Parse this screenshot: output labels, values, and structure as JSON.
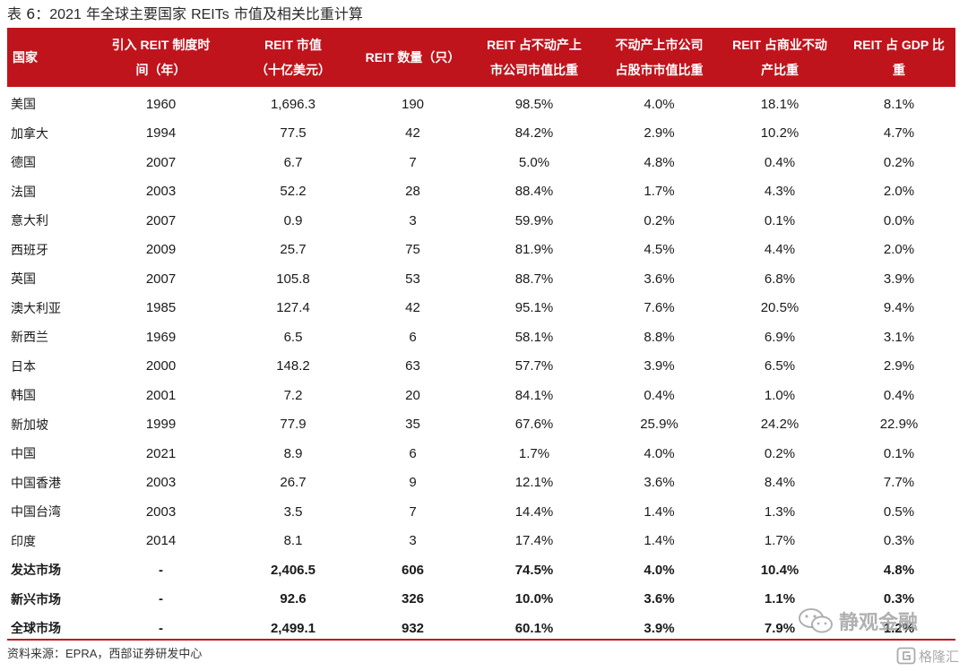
{
  "caption": {
    "prefix": "表 6：",
    "year": "2021",
    "mid": " 年全球主要国家 ",
    "reits": "REITs",
    "suffix": " 市值及相关比重计算"
  },
  "header": {
    "color": "#c0141c",
    "columns": [
      {
        "line1": "国家",
        "line2": ""
      },
      {
        "line1": "引入 REIT 制度时",
        "line2": "间（年）"
      },
      {
        "line1": "REIT 市值",
        "line2": "（十亿美元）"
      },
      {
        "line1": "REIT 数量（只）",
        "line2": ""
      },
      {
        "line1": "REIT 占不动产上",
        "line2": "市公司市值比重"
      },
      {
        "line1": "不动产上市公司",
        "line2": "占股市市值比重"
      },
      {
        "line1": "REIT 占商业不动",
        "line2": "产比重"
      },
      {
        "line1": "REIT 占 GDP 比",
        "line2": "重"
      }
    ]
  },
  "rows": [
    [
      "美国",
      "1960",
      "1,696.3",
      "190",
      "98.5%",
      "4.0%",
      "18.1%",
      "8.1%"
    ],
    [
      "加拿大",
      "1994",
      "77.5",
      "42",
      "84.2%",
      "2.9%",
      "10.2%",
      "4.7%"
    ],
    [
      "德国",
      "2007",
      "6.7",
      "7",
      "5.0%",
      "4.8%",
      "0.4%",
      "0.2%"
    ],
    [
      "法国",
      "2003",
      "52.2",
      "28",
      "88.4%",
      "1.7%",
      "4.3%",
      "2.0%"
    ],
    [
      "意大利",
      "2007",
      "0.9",
      "3",
      "59.9%",
      "0.2%",
      "0.1%",
      "0.0%"
    ],
    [
      "西班牙",
      "2009",
      "25.7",
      "75",
      "81.9%",
      "4.5%",
      "4.4%",
      "2.0%"
    ],
    [
      "英国",
      "2007",
      "105.8",
      "53",
      "88.7%",
      "3.6%",
      "6.8%",
      "3.9%"
    ],
    [
      "澳大利亚",
      "1985",
      "127.4",
      "42",
      "95.1%",
      "7.6%",
      "20.5%",
      "9.4%"
    ],
    [
      "新西兰",
      "1969",
      "6.5",
      "6",
      "58.1%",
      "8.8%",
      "6.9%",
      "3.1%"
    ],
    [
      "日本",
      "2000",
      "148.2",
      "63",
      "57.7%",
      "3.9%",
      "6.5%",
      "2.9%"
    ],
    [
      "韩国",
      "2001",
      "7.2",
      "20",
      "84.1%",
      "0.4%",
      "1.0%",
      "0.4%"
    ],
    [
      "新加坡",
      "1999",
      "77.9",
      "35",
      "67.6%",
      "25.9%",
      "24.2%",
      "22.9%"
    ],
    [
      "中国",
      "2021",
      "8.9",
      "6",
      "1.7%",
      "4.0%",
      "0.2%",
      "0.1%"
    ],
    [
      "中国香港",
      "2003",
      "26.7",
      "9",
      "12.1%",
      "3.6%",
      "8.4%",
      "7.7%"
    ],
    [
      "中国台湾",
      "2003",
      "3.5",
      "7",
      "14.4%",
      "1.4%",
      "1.3%",
      "0.5%"
    ],
    [
      "印度",
      "2014",
      "8.1",
      "3",
      "17.4%",
      "1.4%",
      "1.7%",
      "0.3%"
    ]
  ],
  "summary_rows": [
    [
      "发达市场",
      "-",
      "2,406.5",
      "606",
      "74.5%",
      "4.0%",
      "10.4%",
      "4.8%"
    ],
    [
      "新兴市场",
      "-",
      "92.6",
      "326",
      "10.0%",
      "3.6%",
      "1.1%",
      "0.3%"
    ],
    [
      "全球市场",
      "-",
      "2,499.1",
      "932",
      "60.1%",
      "3.9%",
      "7.9%",
      "1.2%"
    ]
  ],
  "source": {
    "label": "资料来源：",
    "org": "EPRA，",
    "dept": "西部证券研发中心"
  },
  "watermarks": {
    "wechat_text": "静观金融",
    "wechat_icon": "wechat-icon",
    "gelonghui_text": "格隆汇",
    "gelonghui_icon": "gelonghui-logo-icon"
  }
}
